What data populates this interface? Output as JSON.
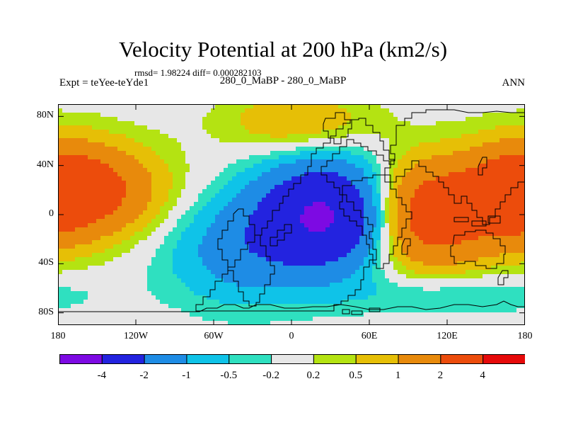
{
  "figure": {
    "title": "Velocity Potential at 200 hPa (km2/s)",
    "stats": "rmsd= 1.98224 diff= 0.000282103",
    "left_label": "Expt = teYee-teYde1",
    "center_label": "280_0_MaBP - 280_0_MaBP",
    "right_label": "ANN"
  },
  "chart_data": {
    "type": "heatmap",
    "projection": "cylindrical-equidistant",
    "quantity": "Velocity Potential at 200 hPa",
    "units": "km2/s",
    "lon_range": [
      -180,
      180
    ],
    "lat_range": [
      -90,
      90
    ],
    "x_ticks": [
      {
        "value": -180,
        "label": "180"
      },
      {
        "value": -120,
        "label": "120W"
      },
      {
        "value": -60,
        "label": "60W"
      },
      {
        "value": 0,
        "label": "0"
      },
      {
        "value": 60,
        "label": "60E"
      },
      {
        "value": 120,
        "label": "120E"
      },
      {
        "value": 180,
        "label": "180"
      }
    ],
    "y_ticks": [
      {
        "value": 80,
        "label": "80N"
      },
      {
        "value": 40,
        "label": "40N"
      },
      {
        "value": 0,
        "label": "0"
      },
      {
        "value": -40,
        "label": "40S"
      },
      {
        "value": -80,
        "label": "80S"
      }
    ],
    "contour_levels": [
      -4,
      -2,
      -1,
      -0.5,
      -0.2,
      0.2,
      0.5,
      1,
      2,
      4
    ],
    "colorbar_labels": [
      "-4",
      "-2",
      "-1",
      "-0.5",
      "-0.2",
      "0.2",
      "0.5",
      "1",
      "2",
      "4"
    ],
    "colors": [
      "#7d0ae3",
      "#2323df",
      "#1e8ce5",
      "#0fc3e8",
      "#2fe0c0",
      "#e7e7e7",
      "#b4e312",
      "#e6bf06",
      "#e88a0c",
      "#ec4c0c",
      "#e60a0a"
    ],
    "centers": [
      {
        "lon": 30,
        "lat": 0,
        "amplitude": -4.4,
        "sigma_lon": 38,
        "sigma_lat": 30
      },
      {
        "lon": -40,
        "lat": -30,
        "amplitude": -1.3,
        "sigma_lon": 40,
        "sigma_lat": 30
      },
      {
        "lon": 100,
        "lat": 0,
        "amplitude": 3.3,
        "sigma_lon": 35,
        "sigma_lat": 30
      },
      {
        "lon": -160,
        "lat": 20,
        "amplitude": 2.6,
        "sigma_lon": 40,
        "sigma_lat": 26
      },
      {
        "lon": 170,
        "lat": 15,
        "amplitude": 1.5,
        "sigma_lon": 28,
        "sigma_lat": 30
      },
      {
        "lon": 5,
        "lat": 75,
        "amplitude": 1.0,
        "sigma_lon": 40,
        "sigma_lat": 18
      },
      {
        "lon": 120,
        "lat": -65,
        "amplitude": -0.6,
        "sigma_lon": 60,
        "sigma_lat": 12
      }
    ]
  }
}
